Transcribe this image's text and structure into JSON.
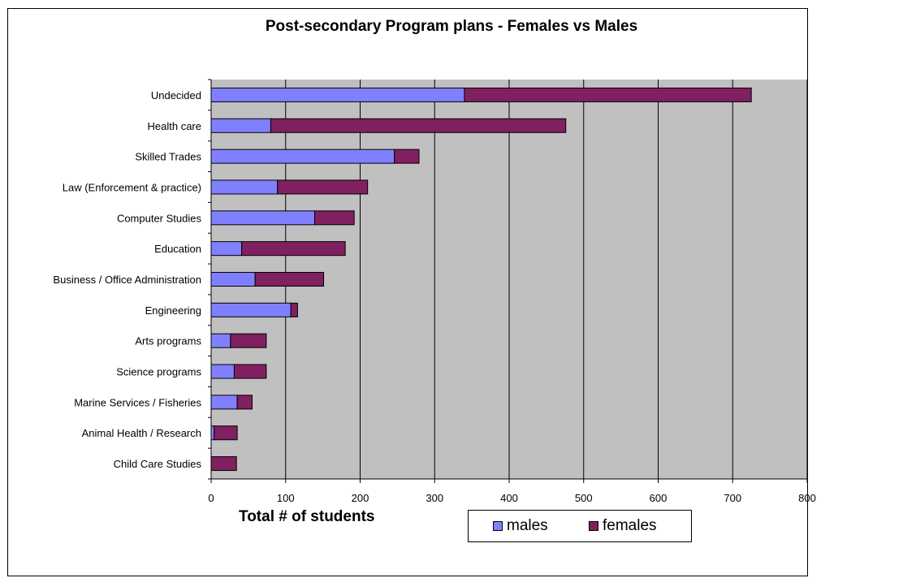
{
  "chart_data": {
    "type": "bar",
    "orientation": "horizontal",
    "stacked": true,
    "title": "Post-secondary Program plans - Females vs Males",
    "xlabel": "Total # of students",
    "ylabel": "",
    "xlim": [
      0,
      800
    ],
    "x_ticks": [
      "0",
      "100",
      "200",
      "300",
      "400",
      "500",
      "600",
      "700",
      "800"
    ],
    "grid": "vertical",
    "plot_background": "#c0c0c0",
    "legend_position": "bottom-right",
    "categories": [
      "Undecided",
      "Health care",
      "Skilled Trades",
      "Law (Enforcement & practice)",
      "Computer Studies",
      "Education",
      "Business / Office Administration",
      "Engineering",
      "Arts programs",
      "Science programs",
      "Marine Services / Fisheries",
      "Animal Health / Research",
      "Child Care Studies"
    ],
    "series": [
      {
        "name": "males",
        "color": "#8080ff",
        "values": [
          340,
          80,
          246,
          89,
          139,
          41,
          59,
          107,
          26,
          31,
          35,
          4,
          0
        ]
      },
      {
        "name": "females",
        "color": "#802060",
        "values": [
          385,
          396,
          33,
          121,
          53,
          139,
          92,
          9,
          48,
          43,
          20,
          31,
          34
        ]
      }
    ]
  }
}
